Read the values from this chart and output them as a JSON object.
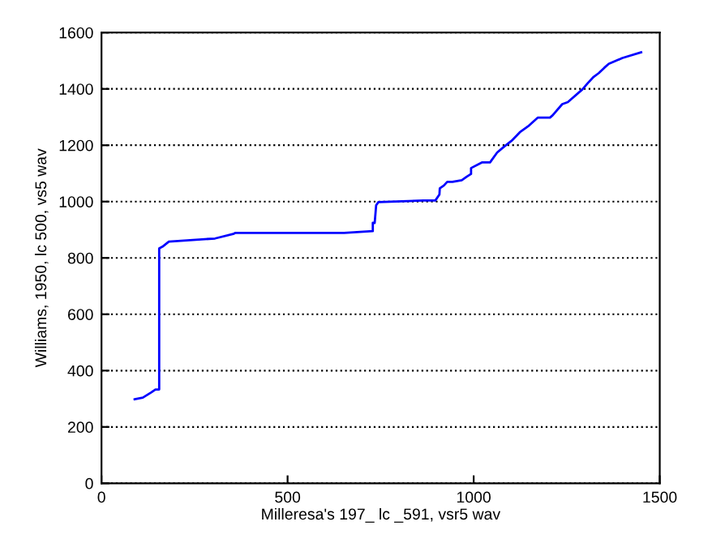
{
  "chart_data": {
    "type": "line",
    "xlabel": "Milleresa's 197_ lc _591, vsr5 wav",
    "ylabel": "Williams, 1950, lc 500, vs5 wav",
    "series": [
      {
        "color": "#0000ff",
        "x": [
          89,
          111,
          133,
          145,
          155,
          155,
          164,
          181,
          305,
          354,
          360,
          652,
          729,
          729,
          734,
          738,
          744,
          865,
          897,
          908,
          909,
          920,
          929,
          943,
          968,
          981,
          993,
          993,
          1022,
          1044,
          1063,
          1080,
          1102,
          1124,
          1146,
          1172,
          1205,
          1212,
          1238,
          1253,
          1292,
          1307,
          1321,
          1336,
          1351,
          1363,
          1400,
          1450
        ],
        "values": [
          298,
          304,
          322,
          333,
          333,
          834,
          840,
          858,
          869,
          885,
          889,
          889,
          895,
          925,
          924,
          987,
          998,
          1004,
          1004,
          1025,
          1047,
          1057,
          1070,
          1070,
          1076,
          1088,
          1098,
          1119,
          1139,
          1139,
          1174,
          1193,
          1216,
          1246,
          1267,
          1298,
          1298,
          1306,
          1346,
          1353,
          1398,
          1421,
          1441,
          1456,
          1475,
          1489,
          1510,
          1530
        ]
      }
    ],
    "xlim": [
      0,
      1500
    ],
    "xticks": [
      0,
      500,
      1000,
      1500
    ],
    "ylim": [
      0,
      1600
    ],
    "yticks": [
      0,
      200,
      400,
      600,
      800,
      1000,
      1200,
      1400,
      1600
    ],
    "grid": "y",
    "line_style": "solid"
  }
}
